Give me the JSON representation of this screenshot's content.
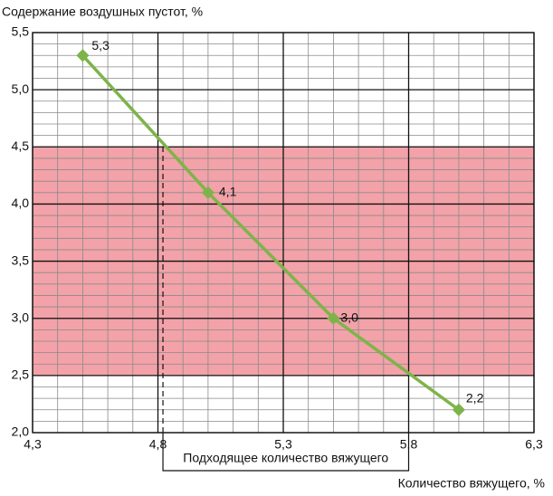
{
  "chart_data": {
    "type": "line",
    "title": "Содержание воздушных пустот, %",
    "x_label": "Количество вяжущего, %",
    "x": [
      4.5,
      5.0,
      5.5,
      6.0
    ],
    "series": [
      {
        "name": "Содержание воздушных пустот",
        "color": "#7db44a",
        "values": [
          5.3,
          4.1,
          3.0,
          2.2
        ],
        "value_labels": [
          "5,3",
          "4,1",
          "3,0",
          "2,2"
        ]
      }
    ],
    "xlim": [
      4.3,
      6.3
    ],
    "xticks": [
      {
        "value": 4.3,
        "label": "4,3"
      },
      {
        "value": 4.8,
        "label": "4,8"
      },
      {
        "value": 5.3,
        "label": "5,3"
      },
      {
        "value": 5.8,
        "label": "5,8"
      },
      {
        "value": 6.3,
        "label": "6,3"
      }
    ],
    "ylim": [
      2.0,
      5.5
    ],
    "yticks": [
      {
        "value": 2.0,
        "label": "2,0"
      },
      {
        "value": 2.5,
        "label": "2,5"
      },
      {
        "value": 3.0,
        "label": "3,0"
      },
      {
        "value": 3.5,
        "label": "3,5"
      },
      {
        "value": 4.0,
        "label": "4,0"
      },
      {
        "value": 4.5,
        "label": "4,5"
      },
      {
        "value": 5.0,
        "label": "5,0"
      },
      {
        "value": 5.5,
        "label": "5,5"
      }
    ],
    "grid": true,
    "minor_grid": {
      "x": 0.1,
      "y": 0.1
    },
    "band": {
      "y": [
        2.5,
        4.5
      ],
      "color": "#f2a2a8"
    },
    "range_annotation": {
      "text": "Подходящее количество вяжущего",
      "x": [
        4.82,
        5.8
      ]
    }
  }
}
